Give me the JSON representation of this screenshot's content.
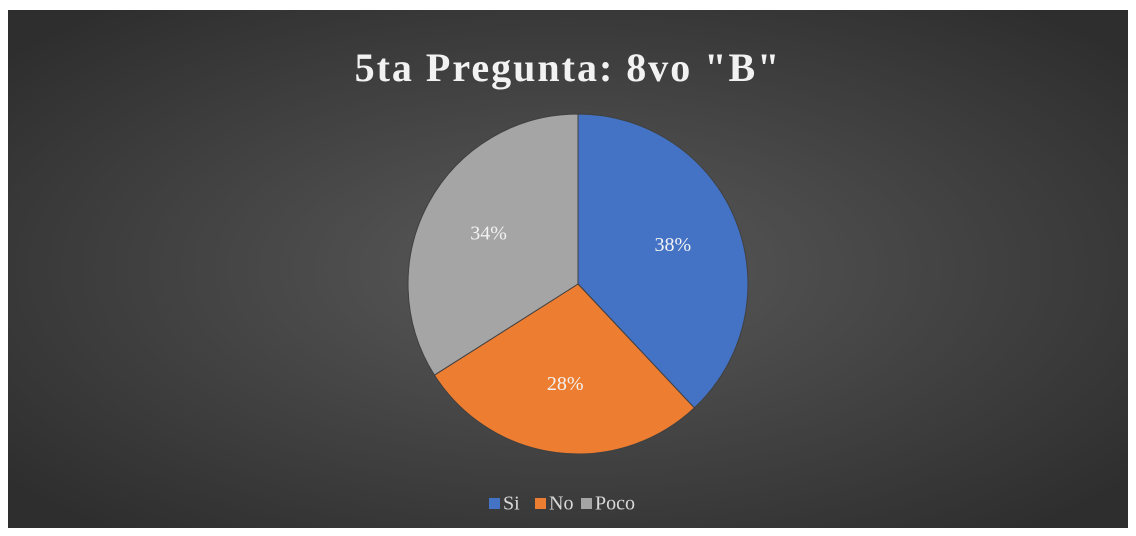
{
  "chart_data": {
    "type": "pie",
    "title": "5ta Pregunta: 8vo \"B\"",
    "categories": [
      "Si",
      "No",
      "Poco"
    ],
    "values": [
      38,
      28,
      34
    ],
    "value_labels": [
      "38%",
      "28%",
      "34%"
    ],
    "colors": [
      "#4472c4",
      "#ed7d31",
      "#a5a5a5"
    ],
    "legend": "bottom"
  }
}
